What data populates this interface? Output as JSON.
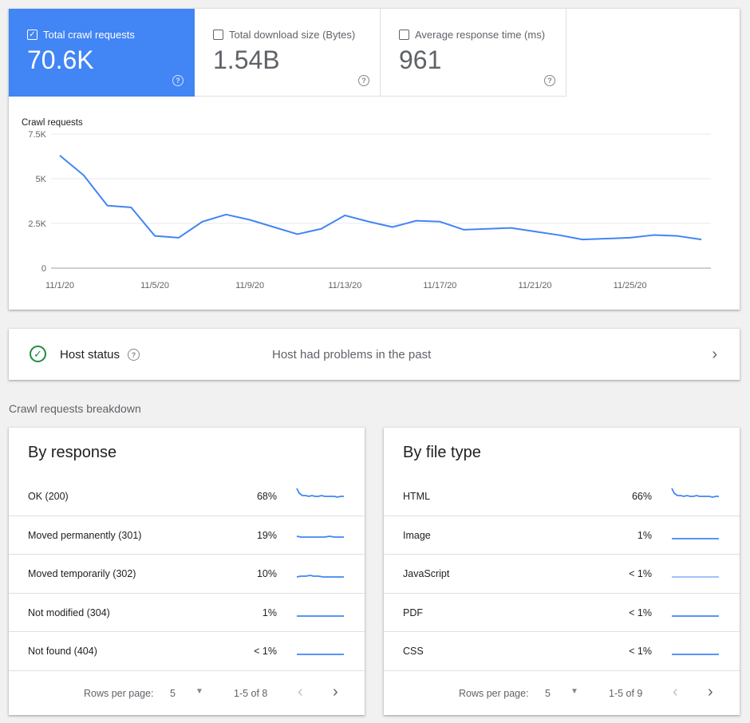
{
  "metrics": [
    {
      "label": "Total crawl requests",
      "value": "70.6K",
      "checked": true
    },
    {
      "label": "Total download size (Bytes)",
      "value": "1.54B",
      "checked": false
    },
    {
      "label": "Average response time (ms)",
      "value": "961",
      "checked": false
    }
  ],
  "chart_data": {
    "type": "line",
    "title": "",
    "ylabel": "Crawl requests",
    "xlabel": "",
    "ylim": [
      0,
      7500
    ],
    "y_ticks": [
      "0",
      "2.5K",
      "5K",
      "7.5K"
    ],
    "x_tick_labels": [
      "11/1/20",
      "11/5/20",
      "11/9/20",
      "11/13/20",
      "11/17/20",
      "11/21/20",
      "11/25/20"
    ],
    "grid": true,
    "series": [
      {
        "color": "#4285f4",
        "x": [
          "11/1/20",
          "11/2/20",
          "11/3/20",
          "11/4/20",
          "11/5/20",
          "11/6/20",
          "11/7/20",
          "11/8/20",
          "11/9/20",
          "11/10/20",
          "11/11/20",
          "11/12/20",
          "11/13/20",
          "11/14/20",
          "11/15/20",
          "11/16/20",
          "11/17/20",
          "11/18/20",
          "11/19/20",
          "11/20/20",
          "11/21/20",
          "11/22/20",
          "11/23/20",
          "11/24/20",
          "11/25/20",
          "11/26/20",
          "11/27/20",
          "11/28/20"
        ],
        "values": [
          6300,
          5200,
          3500,
          3400,
          1800,
          1700,
          2600,
          3000,
          2700,
          2300,
          1900,
          2200,
          2950,
          2600,
          2300,
          2650,
          2600,
          2150,
          2200,
          2250,
          2050,
          1850,
          1600,
          1650,
          1700,
          1850,
          1800,
          1600
        ]
      }
    ]
  },
  "host": {
    "title": "Host status",
    "status": "Host had problems in the past"
  },
  "breakdown_title": "Crawl requests breakdown",
  "by_response": {
    "title": "By response",
    "rows": [
      {
        "name": "OK (200)",
        "pct": "68%"
      },
      {
        "name": "Moved permanently (301)",
        "pct": "19%"
      },
      {
        "name": "Moved temporarily (302)",
        "pct": "10%"
      },
      {
        "name": "Not modified (304)",
        "pct": "1%"
      },
      {
        "name": "Not found (404)",
        "pct": "< 1%"
      }
    ],
    "pager": {
      "label": "Rows per page:",
      "value": "5",
      "range": "1-5 of 8"
    }
  },
  "by_file_type": {
    "title": "By file type",
    "rows": [
      {
        "name": "HTML",
        "pct": "66%"
      },
      {
        "name": "Image",
        "pct": "1%"
      },
      {
        "name": "JavaScript",
        "pct": "< 1%"
      },
      {
        "name": "PDF",
        "pct": "< 1%"
      },
      {
        "name": "CSS",
        "pct": "< 1%"
      }
    ],
    "pager": {
      "label": "Rows per page:",
      "value": "5",
      "range": "1-5 of 9"
    }
  },
  "colors": {
    "accent": "#4285f4",
    "ok": "#1e8e3e"
  },
  "icons": {
    "checkbox": "checkbox-icon",
    "help": "help-icon",
    "ok": "check-circle-icon",
    "chevron": "chevron-right-icon"
  }
}
